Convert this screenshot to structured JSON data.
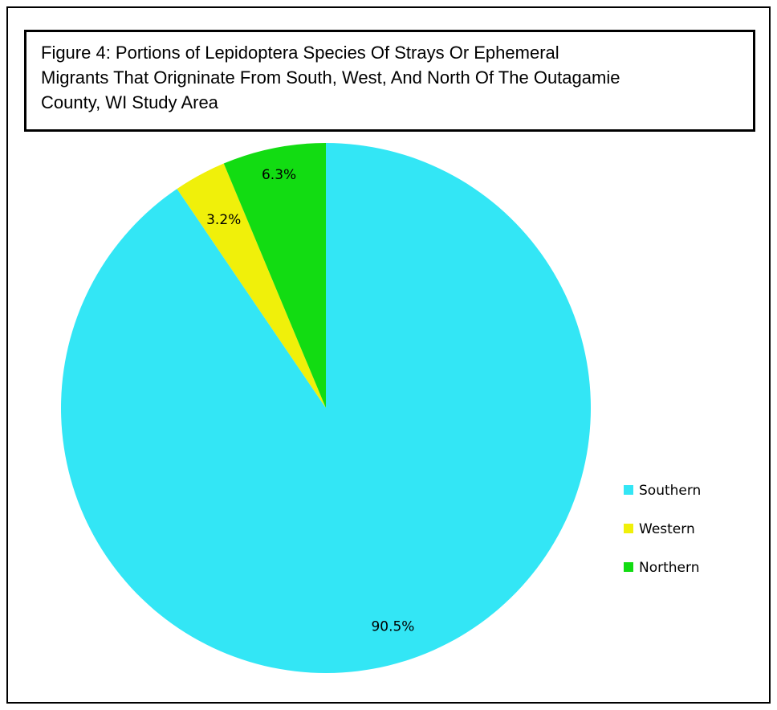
{
  "chart_data": {
    "type": "pie",
    "title": "Figure 4: Portions of Lepidoptera Species  Of Strays Or Ephemeral\n Migrants That Origninate From South, West,  And North Of The Outagamie\nCounty, WI Study Area",
    "categories": [
      "Southern",
      "Western",
      "Northern"
    ],
    "values": [
      90.5,
      3.2,
      6.3
    ],
    "value_labels": [
      "90.5%",
      "3.2%",
      "6.3%"
    ],
    "colors": [
      "#33E6F5",
      "#F0F00A",
      "#12DC12"
    ],
    "legend_position": "right"
  }
}
